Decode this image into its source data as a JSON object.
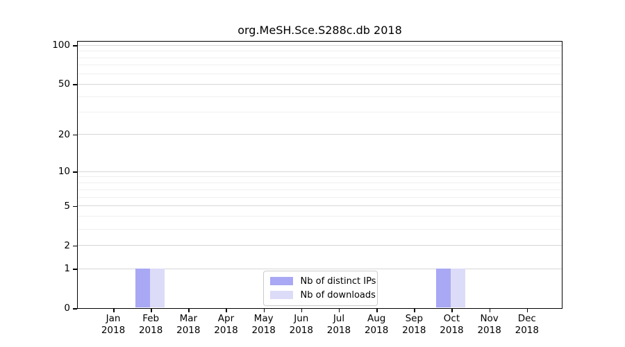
{
  "figure": {
    "title": "org.MeSH.Sce.S288c.db 2018",
    "background_color": "#ffffff"
  },
  "chart_data": {
    "type": "bar",
    "title": "org.MeSH.Sce.S288c.db 2018",
    "xlabel": "",
    "ylabel": "",
    "categories": [
      "Jan",
      "Feb",
      "Mar",
      "Apr",
      "May",
      "Jun",
      "Jul",
      "Aug",
      "Sep",
      "Oct",
      "Nov",
      "Dec"
    ],
    "x_tick_year": "2018",
    "series": [
      {
        "name": "Nb of distinct IPs",
        "color": "#a8a8f4",
        "values": [
          0,
          1,
          0,
          0,
          0,
          0,
          0,
          0,
          0,
          1,
          0,
          0
        ]
      },
      {
        "name": "Nb of downloads",
        "color": "#dcdcf8",
        "values": [
          0,
          1,
          0,
          0,
          0,
          0,
          0,
          0,
          0,
          1,
          0,
          0
        ]
      }
    ],
    "y_scale": "log1p",
    "ylim": [
      0,
      100
    ],
    "y_major_ticks": [
      0,
      1,
      2,
      5,
      10,
      20,
      50,
      100
    ],
    "y_minor_ticks": [
      3,
      4,
      6,
      7,
      8,
      9,
      30,
      40,
      60,
      70,
      80,
      90
    ],
    "grid": "horizontal",
    "legend_position": "inside-bottom-center"
  },
  "legend": {
    "items": [
      {
        "label": "Nb of distinct IPs",
        "color": "#a8a8f4"
      },
      {
        "label": "Nb of downloads",
        "color": "#dcdcf8"
      }
    ]
  },
  "colors": {
    "bar_distinct_ips": "#a8a8f4",
    "bar_downloads": "#dcdcf8",
    "grid_major": "#d6d6d6",
    "grid_minor": "#efefef",
    "axis": "#000000",
    "legend_border": "#c9c9c9",
    "text": "#000000"
  }
}
